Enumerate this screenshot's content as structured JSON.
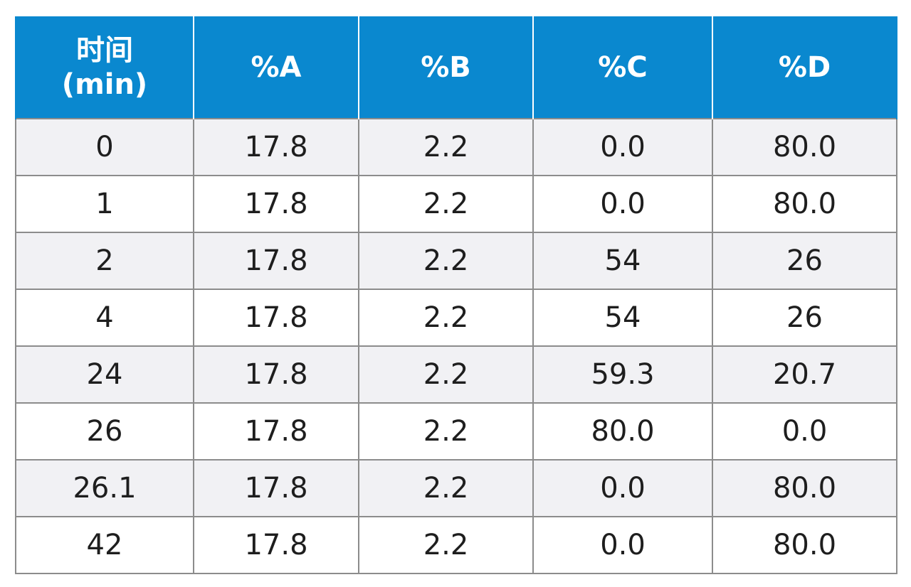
{
  "table": {
    "header": {
      "time": [
        "时间",
        "(min)"
      ],
      "cols": [
        "%A",
        "%B",
        "%C",
        "%D"
      ]
    },
    "rows": [
      [
        "0",
        "17.8",
        "2.2",
        "0.0",
        "80.0"
      ],
      [
        "1",
        "17.8",
        "2.2",
        "0.0",
        "80.0"
      ],
      [
        "2",
        "17.8",
        "2.2",
        "54",
        "26"
      ],
      [
        "4",
        "17.8",
        "2.2",
        "54",
        "26"
      ],
      [
        "24",
        "17.8",
        "2.2",
        "59.3",
        "20.7"
      ],
      [
        "26",
        "17.8",
        "2.2",
        "80.0",
        "0.0"
      ],
      [
        "26.1",
        "17.8",
        "2.2",
        "0.0",
        "80.0"
      ],
      [
        "42",
        "17.8",
        "2.2",
        "0.0",
        "80.0"
      ]
    ]
  },
  "colors": {
    "header_bg": "#0a88cf",
    "header_text": "#ffffff",
    "row_shade": "#f1f1f4",
    "row_plain": "#ffffff",
    "grid": "#8c8c8c"
  }
}
